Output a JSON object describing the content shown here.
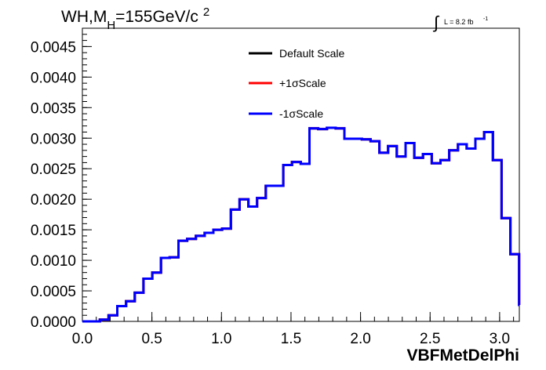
{
  "header": {
    "title_main": "WH,M",
    "title_sub": "H",
    "title_rest": "=155GeV/c",
    "title_sup": "2",
    "lumi_symbol": "∫",
    "lumi_text": "L = 8.2 fb",
    "lumi_sup": "-1"
  },
  "colors": {
    "default": "#000000",
    "plus": "#ff0000",
    "minus": "#0000ff",
    "frame": "#000000"
  },
  "chart_data": {
    "type": "line",
    "title": "WH,M_H=155GeV/c^2",
    "xlabel": "VBFMetDelPhi",
    "ylabel": "",
    "xlim": [
      0,
      3.14159
    ],
    "ylim": [
      0,
      0.0048
    ],
    "xticks": [
      0.0,
      0.5,
      1.0,
      1.5,
      2.0,
      2.5,
      3.0
    ],
    "xtick_labels": [
      "0.0",
      "0.5",
      "1.0",
      "1.5",
      "2.0",
      "2.5",
      "3.0"
    ],
    "yticks": [
      0,
      0.0005,
      0.001,
      0.0015,
      0.002,
      0.0025,
      0.003,
      0.0035,
      0.004,
      0.0045
    ],
    "ytick_labels": [
      "0.0000",
      "0.0005",
      "0.0010",
      "0.0015",
      "0.0020",
      "0.0025",
      "0.0030",
      "0.0035",
      "0.0040",
      "0.0045"
    ],
    "legend_position": "top-center",
    "bin_width": 0.0628,
    "bin_edges_start": 0.0,
    "series": [
      {
        "name": "Default Scale",
        "color": "#000000",
        "values": [
          0.0,
          0.0,
          3e-05,
          0.0001,
          0.00025,
          0.00033,
          0.00047,
          0.0007,
          0.0008,
          0.00104,
          0.00105,
          0.00132,
          0.00135,
          0.0014,
          0.00145,
          0.0015,
          0.00152,
          0.00183,
          0.002,
          0.00188,
          0.00202,
          0.00222,
          0.00222,
          0.00256,
          0.00261,
          0.00258,
          0.00316,
          0.00315,
          0.00317,
          0.00316,
          0.00299,
          0.00299,
          0.00298,
          0.00295,
          0.00276,
          0.00287,
          0.0027,
          0.00292,
          0.00268,
          0.00274,
          0.00259,
          0.00264,
          0.0028,
          0.0029,
          0.00283,
          0.00299,
          0.0031,
          0.00264,
          0.00169,
          0.0011,
          0.00027
        ]
      },
      {
        "name": "+1σScale",
        "color": "#ff0000",
        "values": [
          0.0,
          0.0,
          3e-05,
          0.0001,
          0.00025,
          0.00033,
          0.00047,
          0.0007,
          0.0008,
          0.00104,
          0.00105,
          0.00132,
          0.00135,
          0.0014,
          0.00145,
          0.0015,
          0.00152,
          0.00183,
          0.002,
          0.00188,
          0.00202,
          0.00222,
          0.00222,
          0.00256,
          0.00261,
          0.00258,
          0.00316,
          0.00315,
          0.00317,
          0.00316,
          0.00299,
          0.00299,
          0.00298,
          0.00295,
          0.00276,
          0.00287,
          0.0027,
          0.00292,
          0.00268,
          0.00274,
          0.00259,
          0.00264,
          0.0028,
          0.0029,
          0.00283,
          0.00299,
          0.0031,
          0.00264,
          0.00169,
          0.0011,
          0.00027
        ]
      },
      {
        "name": "-1σScale",
        "color": "#0000ff",
        "values": [
          0.0,
          0.0,
          3e-05,
          0.0001,
          0.00025,
          0.00033,
          0.00047,
          0.0007,
          0.0008,
          0.00104,
          0.00105,
          0.00132,
          0.00135,
          0.0014,
          0.00145,
          0.0015,
          0.00152,
          0.00183,
          0.002,
          0.00188,
          0.00202,
          0.00222,
          0.00222,
          0.00256,
          0.00261,
          0.00258,
          0.00316,
          0.00315,
          0.00317,
          0.00316,
          0.00299,
          0.00299,
          0.00298,
          0.00295,
          0.00276,
          0.00287,
          0.0027,
          0.00292,
          0.00268,
          0.00274,
          0.00259,
          0.00264,
          0.0028,
          0.0029,
          0.00283,
          0.00299,
          0.0031,
          0.00264,
          0.00169,
          0.0011,
          0.00027
        ]
      }
    ]
  }
}
